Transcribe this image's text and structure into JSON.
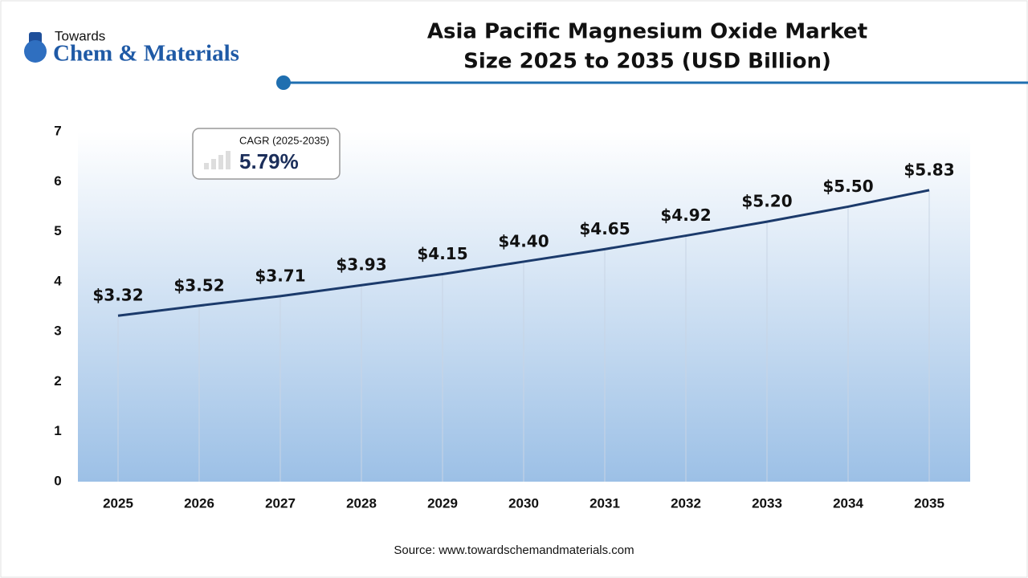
{
  "logo": {
    "top": "Towards",
    "bottom": "Chem & Materials"
  },
  "cagr": {
    "label": "CAGR (2025-2035)",
    "text": "5.79%"
  },
  "source": "Source: www.towardschemandmaterials.com",
  "chart_data": {
    "type": "line",
    "title": [
      "Asia Pacific Magnesium Oxide Market",
      "Size 2025 to 2035 (USD Billion)"
    ],
    "categories": [
      "2025",
      "2026",
      "2027",
      "2028",
      "2029",
      "2030",
      "2031",
      "2032",
      "2033",
      "2034",
      "2035"
    ],
    "values": [
      3.32,
      3.52,
      3.71,
      3.93,
      4.15,
      4.4,
      4.65,
      4.92,
      5.2,
      5.5,
      5.83
    ],
    "value_labels": [
      "$3.32",
      "$3.52",
      "$3.71",
      "$3.93",
      "$4.15",
      "$4.40",
      "$4.65",
      "$4.92",
      "$5.20",
      "$5.50",
      "$5.83"
    ],
    "color": "#1b3a6b",
    "ylim": [
      0,
      7
    ],
    "yticks": [
      0,
      1,
      2,
      3,
      4,
      5,
      6,
      7
    ]
  }
}
